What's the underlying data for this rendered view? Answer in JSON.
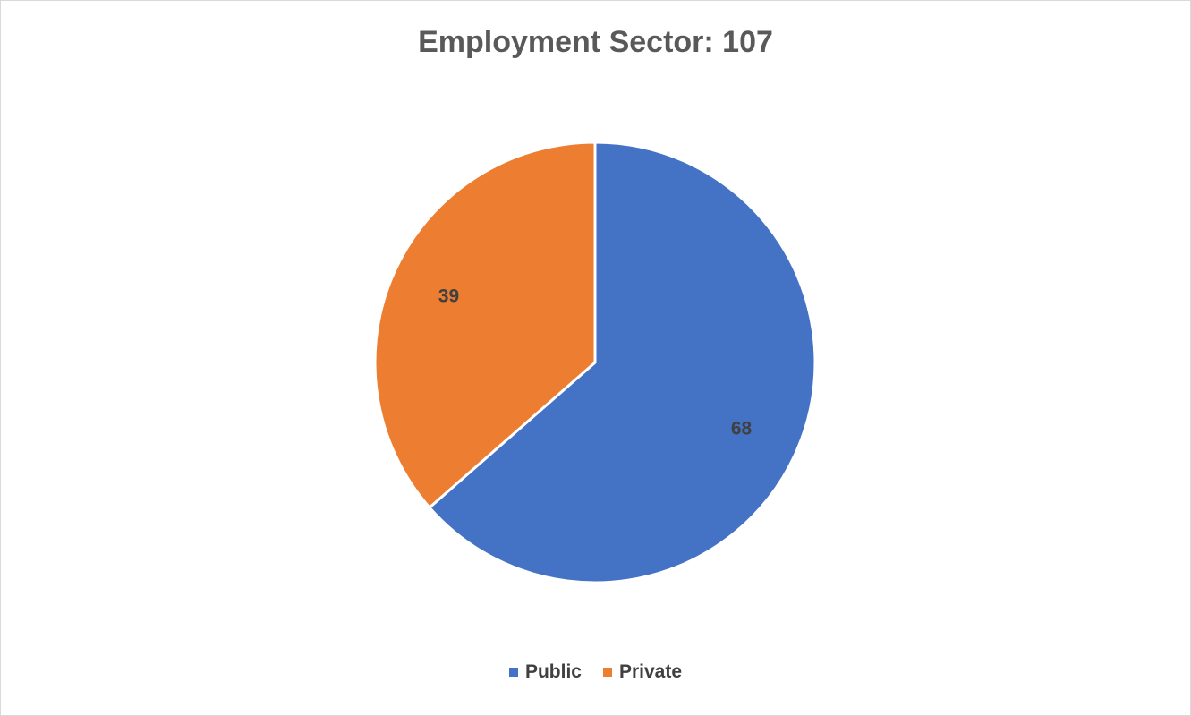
{
  "chart_data": {
    "type": "pie",
    "title": "Employment Sector: 107",
    "categories": [
      "Public",
      "Private"
    ],
    "values": [
      68,
      39
    ],
    "colors": [
      "#4472c4",
      "#ed7d31"
    ],
    "start_angle_deg": 0,
    "direction": "clockwise",
    "legend_position": "bottom",
    "data_labels": [
      "68",
      "39"
    ]
  }
}
